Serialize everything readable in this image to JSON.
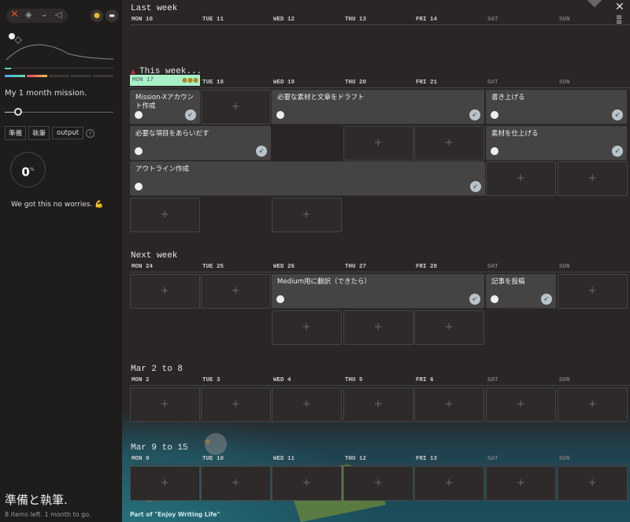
{
  "sidebar": {
    "mission": "My 1 month mission.",
    "slider_value": 0.05,
    "tags": [
      "準備",
      "執筆",
      "output"
    ],
    "help": "?",
    "progress": "0",
    "progress_unit": "%",
    "encourage": "We got this no worries. 💪",
    "project_title": "準備と執筆.",
    "project_sub": "8 items left. 1 month to go.",
    "icons": [
      "close-icon",
      "layers-icon",
      "chevron-down-icon",
      "send-icon",
      "medal-icon",
      "chat-icon"
    ]
  },
  "main": {
    "footer": "Part of \"Enjoy Writing Life\"",
    "today_badge": "MON 17",
    "add": "+",
    "weeks": [
      {
        "title": "Last week",
        "days": [
          "MON 10",
          "TUE 11",
          "WED 12",
          "THU 13",
          "FRI 14",
          "SAT",
          "SUN"
        ],
        "rows": []
      },
      {
        "title": "This week...",
        "days": [
          "",
          "TUE 18",
          "WED 19",
          "THU 20",
          "FRI 21",
          "SAT",
          "SUN"
        ],
        "rows": [
          [
            {
              "col": 0,
              "span": 1,
              "task": "Mission-Xアカウント作成"
            },
            {
              "col": 1,
              "span": 1
            },
            {
              "col": 2,
              "span": 3,
              "task": "必要な素材と文章をドラフト"
            },
            {
              "col": 5,
              "span": 2,
              "task": "書き上げる"
            }
          ],
          [
            {
              "col": 0,
              "span": 2,
              "task": "必要な項目をあらいだす"
            },
            {
              "col": 3,
              "span": 1
            },
            {
              "col": 4,
              "span": 1
            },
            {
              "col": 5,
              "span": 2,
              "task": "素材を仕上げる"
            }
          ],
          [
            {
              "col": 0,
              "span": 5,
              "task": "アウトライン作成"
            },
            {
              "col": 5,
              "span": 1
            },
            {
              "col": 6,
              "span": 1
            }
          ],
          [
            {
              "col": 0,
              "span": 1
            },
            {
              "col": 2,
              "span": 1
            }
          ]
        ]
      },
      {
        "title": "Next week",
        "days": [
          "MON 24",
          "TUE 25",
          "WED 26",
          "THU 27",
          "FRI 28",
          "SAT",
          "SUN"
        ],
        "rows": [
          [
            {
              "col": 0,
              "span": 1
            },
            {
              "col": 1,
              "span": 1
            },
            {
              "col": 2,
              "span": 3,
              "task": "Medium用に翻訳（できたら）"
            },
            {
              "col": 5,
              "span": 1,
              "task": "記事を投稿"
            },
            {
              "col": 6,
              "span": 1
            }
          ],
          [
            {
              "col": 2,
              "span": 1
            },
            {
              "col": 3,
              "span": 1
            },
            {
              "col": 4,
              "span": 1
            }
          ]
        ]
      },
      {
        "title": "Mar 2 to 8",
        "days": [
          "MON 2",
          "TUE 3",
          "WED 4",
          "THU 5",
          "FRI 6",
          "SAT",
          "SUN"
        ],
        "rows": [
          [
            {
              "col": 0,
              "span": 1
            },
            {
              "col": 1,
              "span": 1
            },
            {
              "col": 2,
              "span": 1
            },
            {
              "col": 3,
              "span": 1
            },
            {
              "col": 4,
              "span": 1
            },
            {
              "col": 5,
              "span": 1
            },
            {
              "col": 6,
              "span": 1
            }
          ]
        ]
      },
      {
        "title": "Mar 9 to 15",
        "days": [
          "MON 9",
          "TUE 10",
          "WED 11",
          "THU 12",
          "FRI 13",
          "SAT",
          "SUN"
        ],
        "rows": [
          [
            {
              "col": 0,
              "span": 1
            },
            {
              "col": 1,
              "span": 1
            },
            {
              "col": 2,
              "span": 1
            },
            {
              "col": 3,
              "span": 1
            },
            {
              "col": 4,
              "span": 1
            },
            {
              "col": 5,
              "span": 1
            },
            {
              "col": 6,
              "span": 1
            }
          ]
        ]
      }
    ]
  }
}
